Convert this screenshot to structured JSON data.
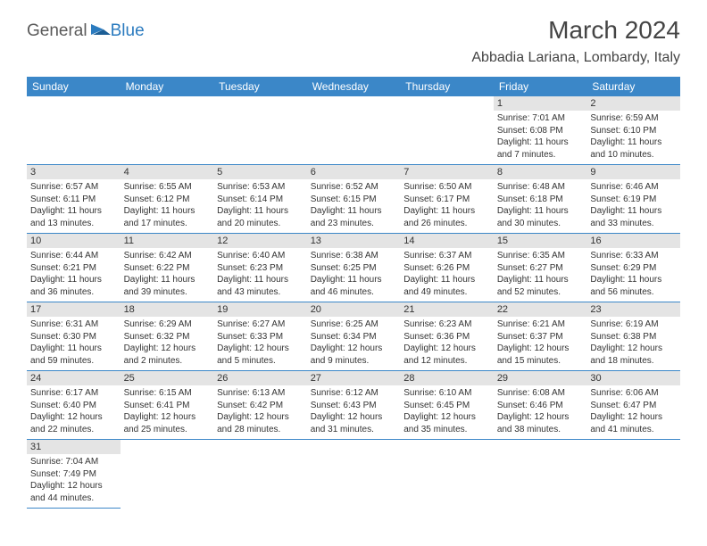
{
  "logo": {
    "general": "General",
    "blue": "Blue"
  },
  "title": {
    "month": "March 2024",
    "location": "Abbadia Lariana, Lombardy, Italy"
  },
  "header_bg": "#3b87c8",
  "daynum_bg": "#e4e4e4",
  "weekdays": [
    "Sunday",
    "Monday",
    "Tuesday",
    "Wednesday",
    "Thursday",
    "Friday",
    "Saturday"
  ],
  "weeks": [
    [
      null,
      null,
      null,
      null,
      null,
      {
        "n": "1",
        "sr": "Sunrise: 7:01 AM",
        "ss": "Sunset: 6:08 PM",
        "dl": "Daylight: 11 hours and 7 minutes."
      },
      {
        "n": "2",
        "sr": "Sunrise: 6:59 AM",
        "ss": "Sunset: 6:10 PM",
        "dl": "Daylight: 11 hours and 10 minutes."
      }
    ],
    [
      {
        "n": "3",
        "sr": "Sunrise: 6:57 AM",
        "ss": "Sunset: 6:11 PM",
        "dl": "Daylight: 11 hours and 13 minutes."
      },
      {
        "n": "4",
        "sr": "Sunrise: 6:55 AM",
        "ss": "Sunset: 6:12 PM",
        "dl": "Daylight: 11 hours and 17 minutes."
      },
      {
        "n": "5",
        "sr": "Sunrise: 6:53 AM",
        "ss": "Sunset: 6:14 PM",
        "dl": "Daylight: 11 hours and 20 minutes."
      },
      {
        "n": "6",
        "sr": "Sunrise: 6:52 AM",
        "ss": "Sunset: 6:15 PM",
        "dl": "Daylight: 11 hours and 23 minutes."
      },
      {
        "n": "7",
        "sr": "Sunrise: 6:50 AM",
        "ss": "Sunset: 6:17 PM",
        "dl": "Daylight: 11 hours and 26 minutes."
      },
      {
        "n": "8",
        "sr": "Sunrise: 6:48 AM",
        "ss": "Sunset: 6:18 PM",
        "dl": "Daylight: 11 hours and 30 minutes."
      },
      {
        "n": "9",
        "sr": "Sunrise: 6:46 AM",
        "ss": "Sunset: 6:19 PM",
        "dl": "Daylight: 11 hours and 33 minutes."
      }
    ],
    [
      {
        "n": "10",
        "sr": "Sunrise: 6:44 AM",
        "ss": "Sunset: 6:21 PM",
        "dl": "Daylight: 11 hours and 36 minutes."
      },
      {
        "n": "11",
        "sr": "Sunrise: 6:42 AM",
        "ss": "Sunset: 6:22 PM",
        "dl": "Daylight: 11 hours and 39 minutes."
      },
      {
        "n": "12",
        "sr": "Sunrise: 6:40 AM",
        "ss": "Sunset: 6:23 PM",
        "dl": "Daylight: 11 hours and 43 minutes."
      },
      {
        "n": "13",
        "sr": "Sunrise: 6:38 AM",
        "ss": "Sunset: 6:25 PM",
        "dl": "Daylight: 11 hours and 46 minutes."
      },
      {
        "n": "14",
        "sr": "Sunrise: 6:37 AM",
        "ss": "Sunset: 6:26 PM",
        "dl": "Daylight: 11 hours and 49 minutes."
      },
      {
        "n": "15",
        "sr": "Sunrise: 6:35 AM",
        "ss": "Sunset: 6:27 PM",
        "dl": "Daylight: 11 hours and 52 minutes."
      },
      {
        "n": "16",
        "sr": "Sunrise: 6:33 AM",
        "ss": "Sunset: 6:29 PM",
        "dl": "Daylight: 11 hours and 56 minutes."
      }
    ],
    [
      {
        "n": "17",
        "sr": "Sunrise: 6:31 AM",
        "ss": "Sunset: 6:30 PM",
        "dl": "Daylight: 11 hours and 59 minutes."
      },
      {
        "n": "18",
        "sr": "Sunrise: 6:29 AM",
        "ss": "Sunset: 6:32 PM",
        "dl": "Daylight: 12 hours and 2 minutes."
      },
      {
        "n": "19",
        "sr": "Sunrise: 6:27 AM",
        "ss": "Sunset: 6:33 PM",
        "dl": "Daylight: 12 hours and 5 minutes."
      },
      {
        "n": "20",
        "sr": "Sunrise: 6:25 AM",
        "ss": "Sunset: 6:34 PM",
        "dl": "Daylight: 12 hours and 9 minutes."
      },
      {
        "n": "21",
        "sr": "Sunrise: 6:23 AM",
        "ss": "Sunset: 6:36 PM",
        "dl": "Daylight: 12 hours and 12 minutes."
      },
      {
        "n": "22",
        "sr": "Sunrise: 6:21 AM",
        "ss": "Sunset: 6:37 PM",
        "dl": "Daylight: 12 hours and 15 minutes."
      },
      {
        "n": "23",
        "sr": "Sunrise: 6:19 AM",
        "ss": "Sunset: 6:38 PM",
        "dl": "Daylight: 12 hours and 18 minutes."
      }
    ],
    [
      {
        "n": "24",
        "sr": "Sunrise: 6:17 AM",
        "ss": "Sunset: 6:40 PM",
        "dl": "Daylight: 12 hours and 22 minutes."
      },
      {
        "n": "25",
        "sr": "Sunrise: 6:15 AM",
        "ss": "Sunset: 6:41 PM",
        "dl": "Daylight: 12 hours and 25 minutes."
      },
      {
        "n": "26",
        "sr": "Sunrise: 6:13 AM",
        "ss": "Sunset: 6:42 PM",
        "dl": "Daylight: 12 hours and 28 minutes."
      },
      {
        "n": "27",
        "sr": "Sunrise: 6:12 AM",
        "ss": "Sunset: 6:43 PM",
        "dl": "Daylight: 12 hours and 31 minutes."
      },
      {
        "n": "28",
        "sr": "Sunrise: 6:10 AM",
        "ss": "Sunset: 6:45 PM",
        "dl": "Daylight: 12 hours and 35 minutes."
      },
      {
        "n": "29",
        "sr": "Sunrise: 6:08 AM",
        "ss": "Sunset: 6:46 PM",
        "dl": "Daylight: 12 hours and 38 minutes."
      },
      {
        "n": "30",
        "sr": "Sunrise: 6:06 AM",
        "ss": "Sunset: 6:47 PM",
        "dl": "Daylight: 12 hours and 41 minutes."
      }
    ],
    [
      {
        "n": "31",
        "sr": "Sunrise: 7:04 AM",
        "ss": "Sunset: 7:49 PM",
        "dl": "Daylight: 12 hours and 44 minutes."
      },
      null,
      null,
      null,
      null,
      null,
      null
    ]
  ]
}
